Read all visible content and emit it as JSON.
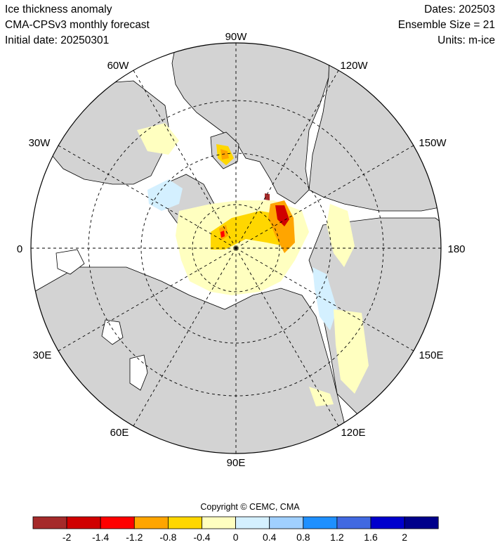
{
  "header": {
    "title": "Ice thickness anomaly",
    "model": "CMA-CPSv3 monthly forecast",
    "initial_date": "Initial date: 20250301",
    "dates": "Dates: 202503",
    "ensemble": "Ensemble Size = 21",
    "units": "Units: m-ice"
  },
  "map": {
    "projection": "north polar stereographic",
    "longitude_labels": [
      "0",
      "30E",
      "60E",
      "90E",
      "120E",
      "150E",
      "180",
      "150W",
      "120W",
      "90W",
      "60W",
      "30W"
    ],
    "colors": {
      "land": "#d3d3d3",
      "ocean": "#ffffff",
      "coast": "#000000",
      "grid": "#000000"
    }
  },
  "copyright": "Copyright © CEMC, CMA",
  "colorbar": {
    "colors": [
      "#a52a2a",
      "#d00000",
      "#ff0000",
      "#ffa500",
      "#ffd700",
      "#ffffc0",
      "#d4f0ff",
      "#a0d0ff",
      "#1e90ff",
      "#4169e1",
      "#0000cd",
      "#00008b"
    ],
    "labels": [
      "-2",
      "-1.4",
      "-1.2",
      "-0.8",
      "-0.4",
      "0",
      "0.4",
      "0.8",
      "1.2",
      "1.6",
      "2"
    ]
  }
}
